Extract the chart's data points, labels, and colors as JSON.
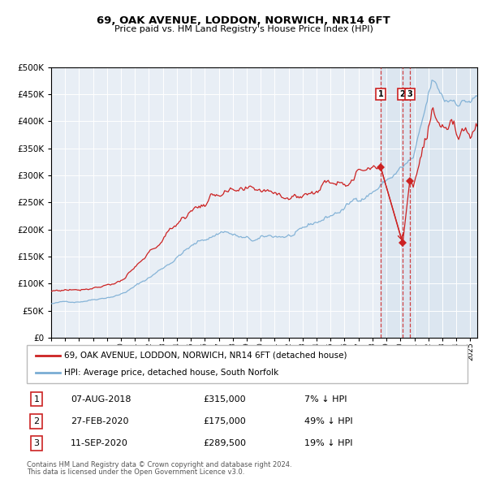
{
  "title": "69, OAK AVENUE, LODDON, NORWICH, NR14 6FT",
  "subtitle": "Price paid vs. HM Land Registry's House Price Index (HPI)",
  "legend_red": "69, OAK AVENUE, LODDON, NORWICH, NR14 6FT (detached house)",
  "legend_blue": "HPI: Average price, detached house, South Norfolk",
  "sale_events": [
    {
      "label": "1",
      "date_num": 2018.59,
      "price": 315000,
      "note": "07-AUG-2018",
      "pct": "7% ↓ HPI"
    },
    {
      "label": "2",
      "date_num": 2020.15,
      "price": 175000,
      "note": "27-FEB-2020",
      "pct": "49% ↓ HPI"
    },
    {
      "label": "3",
      "date_num": 2020.69,
      "price": 289500,
      "note": "11-SEP-2020",
      "pct": "19% ↓ HPI"
    }
  ],
  "footnote1": "Contains HM Land Registry data © Crown copyright and database right 2024.",
  "footnote2": "This data is licensed under the Open Government Licence v3.0.",
  "ylim": [
    0,
    500000
  ],
  "xlim_start": 1995.0,
  "xlim_end": 2025.5,
  "chart_bg": "#e8eef5",
  "highlight_bg": "#dce6f0",
  "grid_color": "#ffffff",
  "red_line_color": "#cc2222",
  "blue_line_color": "#7aadd4",
  "dashed_line_color": "#cc2222"
}
